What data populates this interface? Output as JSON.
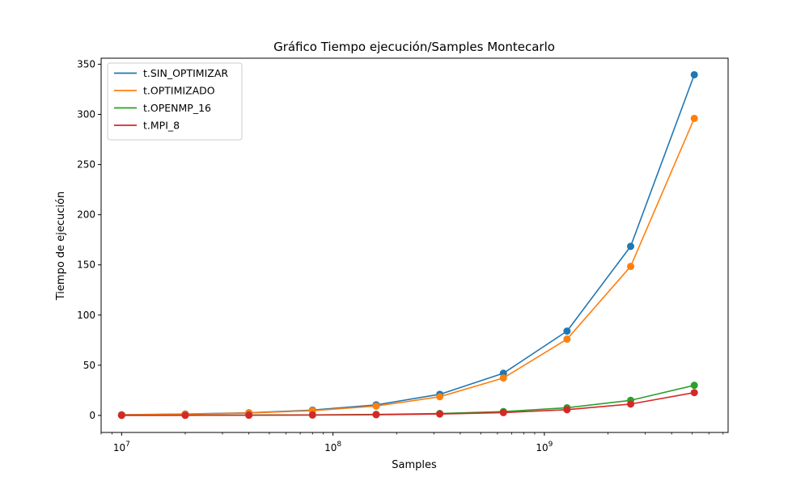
{
  "chart_data": {
    "type": "line",
    "title": "Gráfico Tiempo ejecución/Samples Montecarlo",
    "xlabel": "Samples",
    "ylabel": "Tiempo de ejecución",
    "xscale": "log",
    "xlim": [
      8000000,
      7400000000
    ],
    "ylim": [
      -17,
      356
    ],
    "x": [
      10000000,
      20000000,
      40000000,
      80000000,
      160000000,
      320000000,
      640000000,
      1280000000,
      2560000000,
      5120000000
    ],
    "x_ticks": [
      {
        "value": 10000000,
        "base": "10",
        "exp": "7"
      },
      {
        "value": 100000000,
        "base": "10",
        "exp": "8"
      },
      {
        "value": 1000000000,
        "base": "10",
        "exp": "9"
      }
    ],
    "y_ticks": [
      0,
      50,
      100,
      150,
      200,
      250,
      300,
      350
    ],
    "grid": false,
    "legend_position": "top-left",
    "series": [
      {
        "name": "t.SIN_OPTIMIZAR",
        "color": "#1f77b4",
        "values": [
          0.7,
          1.4,
          2.6,
          5.3,
          10.5,
          21.0,
          42.0,
          84.0,
          168.5,
          339.5
        ]
      },
      {
        "name": "t.OPTIMIZADO",
        "color": "#ff7f0e",
        "values": [
          0.6,
          1.2,
          2.4,
          4.7,
          9.3,
          18.6,
          37.3,
          76.0,
          148.5,
          296.0
        ]
      },
      {
        "name": "t.OPENMP_16",
        "color": "#2ca02c",
        "values": [
          0.1,
          0.2,
          0.4,
          0.5,
          1.0,
          1.9,
          3.8,
          7.6,
          15.0,
          30.0
        ]
      },
      {
        "name": "t.MPI_8",
        "color": "#d62728",
        "values": [
          0.05,
          0.1,
          0.2,
          0.4,
          0.7,
          1.4,
          2.8,
          5.7,
          11.3,
          22.7
        ]
      }
    ]
  }
}
